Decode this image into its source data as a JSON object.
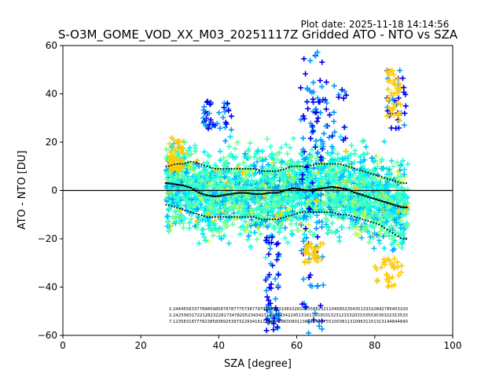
{
  "chart_data": {
    "type": "scatter",
    "plot_date": "Plot date: 2025-11-18 14:14:56",
    "title": "S-O3M_GOME_VOD_XX_M03_20251117Z Gridded ATO - NTO vs SZA",
    "xlabel": "SZA [degree]",
    "ylabel": "ATO - NTO [DU]",
    "xlim": [
      0,
      100
    ],
    "ylim": [
      -60,
      60
    ],
    "xticks": [
      0,
      20,
      40,
      60,
      80,
      100
    ],
    "yticks": [
      -60,
      -40,
      -20,
      0,
      20,
      40,
      60
    ],
    "marker": "+",
    "point_colors": [
      "#33ffcc",
      "#66ff99",
      "#00e5ff",
      "#00bfff",
      "#0099ff",
      "#00ffdd",
      "#99ff66",
      "#ccff33",
      "#ffcc00",
      "#0000ee"
    ],
    "zero_line_color": "#000000",
    "sza_bins": [
      27,
      29,
      31,
      33,
      35,
      37,
      39,
      41,
      43,
      45,
      47,
      49,
      51,
      53,
      55,
      57,
      59,
      61,
      63,
      65,
      67,
      69,
      71,
      73,
      75,
      77,
      79,
      81,
      83,
      85,
      87
    ],
    "mean_diff": [
      3,
      2.5,
      2,
      1,
      -1,
      -2,
      -2.5,
      -2,
      -1.5,
      -1,
      -1,
      -1.5,
      -1.5,
      -1,
      -1,
      0,
      1,
      0.5,
      0,
      0.5,
      1,
      1.5,
      1,
      0.5,
      -1,
      -2,
      -3,
      -4,
      -5,
      -6,
      -7
    ],
    "plus_std": [
      10,
      11,
      11,
      12,
      11,
      10,
      9,
      9,
      9,
      9,
      9,
      9,
      8,
      8,
      8,
      9,
      10,
      10,
      10,
      11,
      11,
      11,
      11,
      10,
      9,
      8,
      7,
      6,
      5,
      4,
      3
    ],
    "minus_std": [
      -6,
      -7,
      -8,
      -9,
      -10,
      -11,
      -11,
      -11,
      -11,
      -11,
      -11,
      -11,
      -12,
      -12,
      -12,
      -11,
      -10,
      -9,
      -9,
      -9,
      -9,
      -9,
      -10,
      -10,
      -11,
      -12,
      -13,
      -14,
      -16,
      -18,
      -20
    ],
    "count_rows": [
      "2.24445583377898598587878777573877979784883108102810435882321104585235435133310842785403100",
      "2.2425583172212823228173478205234342312339434224513161130303132312153203333553030322313533",
      "7.12358318777823858389253973229341611186040960090113051145775510038113109631151313144844840"
    ]
  }
}
